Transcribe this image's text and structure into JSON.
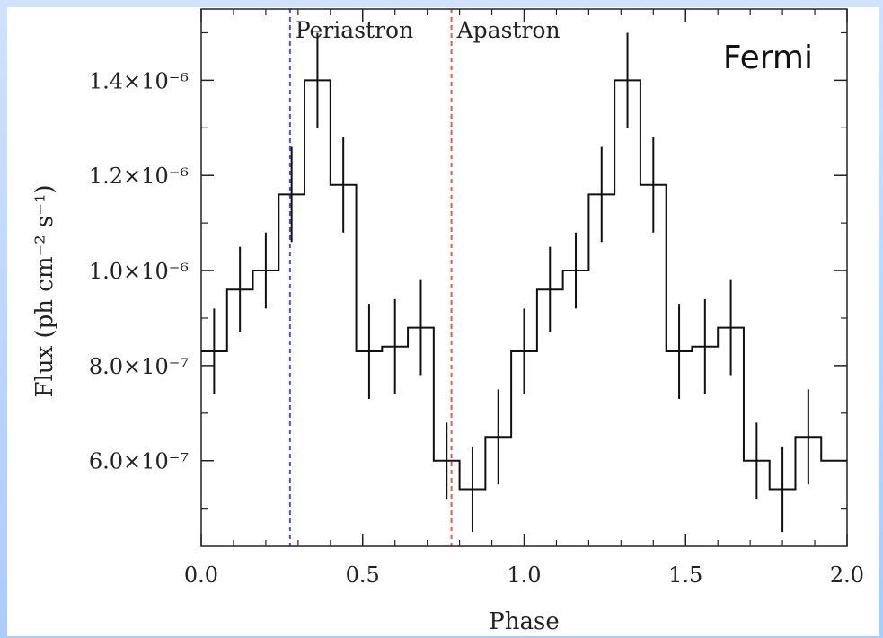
{
  "chart_data": {
    "type": "line",
    "style": "step-with-errorbars",
    "instrument_label": "Fermi",
    "xlabel": "Phase",
    "ylabel": "Flux (ph cm⁻² s⁻¹)",
    "xlim": [
      0.0,
      2.0
    ],
    "ylim": [
      4.2e-07,
      1.55e-06
    ],
    "xticks": [
      {
        "value": 0.0,
        "label": "0.0"
      },
      {
        "value": 0.5,
        "label": "0.5"
      },
      {
        "value": 1.0,
        "label": "1.0"
      },
      {
        "value": 1.5,
        "label": "1.5"
      },
      {
        "value": 2.0,
        "label": "2.0"
      }
    ],
    "yticks": [
      {
        "value": 6e-07,
        "label": "6.0×10⁻⁷"
      },
      {
        "value": 8e-07,
        "label": "8.0×10⁻⁷"
      },
      {
        "value": 1e-06,
        "label": "1.0×10⁻⁶"
      },
      {
        "value": 1.2e-06,
        "label": "1.2×10⁻⁶"
      },
      {
        "value": 1.4e-06,
        "label": "1.4×10⁻⁶"
      }
    ],
    "bin_width": 0.08,
    "series": [
      {
        "x": [
          0.04,
          0.12,
          0.2,
          0.28,
          0.36,
          0.44,
          0.52,
          0.6,
          0.68,
          0.76,
          0.84,
          0.92,
          1.0,
          1.08,
          1.16,
          1.24,
          1.32,
          1.4,
          1.48,
          1.56,
          1.64,
          1.72,
          1.8,
          1.88,
          1.96
        ],
        "y": [
          8.3e-07,
          9.6e-07,
          1e-06,
          1.16e-06,
          1.4e-06,
          1.18e-06,
          8.3e-07,
          8.4e-07,
          8.8e-07,
          6e-07,
          5.4e-07,
          6.5e-07,
          8.3e-07,
          9.6e-07,
          1e-06,
          1.16e-06,
          1.4e-06,
          1.18e-06,
          8.3e-07,
          8.4e-07,
          8.8e-07,
          6e-07,
          5.4e-07,
          6.5e-07,
          6e-07
        ],
        "err": [
          9e-08,
          9e-08,
          8e-08,
          1e-07,
          1e-07,
          1e-07,
          1e-07,
          1e-07,
          1e-07,
          8e-08,
          9e-08,
          1e-07,
          9e-08,
          9e-08,
          8e-08,
          1e-07,
          1e-07,
          1e-07,
          1e-07,
          1e-07,
          1e-07,
          8e-08,
          9e-08,
          1e-07,
          0.0
        ]
      }
    ],
    "annotations": [
      {
        "label": "Periastron",
        "x": 0.275,
        "color": "#3b5bdb",
        "style": "dashed"
      },
      {
        "label": "Apastron",
        "x": 0.775,
        "color": "#e8594a",
        "style": "dashed"
      }
    ],
    "grid": false,
    "legend": "none"
  }
}
